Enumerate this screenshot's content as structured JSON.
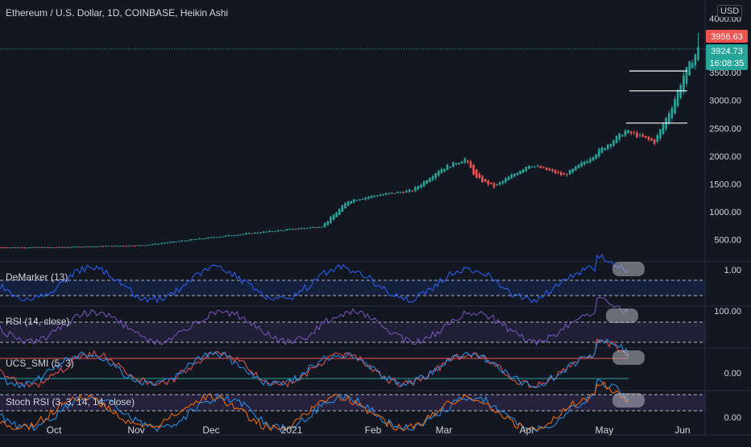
{
  "header": {
    "title": "Ethereum / U.S. Dollar, 1D, COINBASE, Heikin Ashi",
    "currency": "USD"
  },
  "price_labels": {
    "high": "3956.63",
    "last": "3924.73",
    "countdown": "16:08:35"
  },
  "colors": {
    "background": "#131722",
    "up": "#26a69a",
    "down": "#ef5350",
    "demarker_line": "#2962ff",
    "rsi_line": "#7e57c2",
    "smi_main": "#ef5350",
    "smi_signal": "#2196f3",
    "stoch_k": "#2196f3",
    "stoch_d": "#ff6d00"
  },
  "chart_data": [
    {
      "type": "candlestick",
      "subtype": "heikin-ashi",
      "title": "Ethereum / U.S. Dollar, 1D, COINBASE, Heikin Ashi",
      "x_ticks": [
        "Oct",
        "Nov",
        "Dec",
        "2021",
        "Feb",
        "Mar",
        "Apr",
        "May",
        "Jun"
      ],
      "y_ticks": [
        "4000.00",
        "3500.00",
        "3000.00",
        "2500.00",
        "2000.00",
        "1500.00",
        "1000.00",
        "500.00"
      ],
      "ylim": [
        0,
        4000
      ],
      "approx_closes": [
        {
          "date": "2020-10-01",
          "close": 360
        },
        {
          "date": "2020-11-01",
          "close": 400
        },
        {
          "date": "2020-12-01",
          "close": 580
        },
        {
          "date": "2021-01-01",
          "close": 740
        },
        {
          "date": "2021-01-10",
          "close": 1200
        },
        {
          "date": "2021-01-20",
          "close": 1300
        },
        {
          "date": "2021-02-01",
          "close": 1380
        },
        {
          "date": "2021-02-10",
          "close": 1750
        },
        {
          "date": "2021-02-19",
          "close": 1950
        },
        {
          "date": "2021-02-23",
          "close": 1600
        },
        {
          "date": "2021-03-01",
          "close": 1450
        },
        {
          "date": "2021-03-13",
          "close": 1850
        },
        {
          "date": "2021-03-25",
          "close": 1650
        },
        {
          "date": "2021-04-01",
          "close": 1900
        },
        {
          "date": "2021-04-15",
          "close": 2450
        },
        {
          "date": "2021-04-25",
          "close": 2250
        },
        {
          "date": "2021-05-01",
          "close": 2900
        },
        {
          "date": "2021-05-05",
          "close": 3450
        },
        {
          "date": "2021-05-10",
          "close": 3924.73
        }
      ],
      "last_price": 3924.73,
      "high_price": 3956.63,
      "horizontal_levels": [
        3500,
        3100,
        2550
      ]
    },
    {
      "type": "line",
      "name": "DeMarker (13)",
      "y_ticks": [
        "1.00"
      ],
      "bands": [
        0.7,
        0.3
      ]
    },
    {
      "type": "line",
      "name": "RSI (14, close)",
      "y_ticks": [
        "100.00"
      ],
      "bands": [
        70,
        30
      ]
    },
    {
      "type": "line",
      "name": "UCS_SMI (5, 3)",
      "y_ticks": [
        "0.00"
      ]
    },
    {
      "type": "line",
      "name": "Stoch RSI (3, 3, 14, 14, close)",
      "y_ticks": [
        "0.00"
      ],
      "bands": [
        80,
        20
      ]
    }
  ]
}
